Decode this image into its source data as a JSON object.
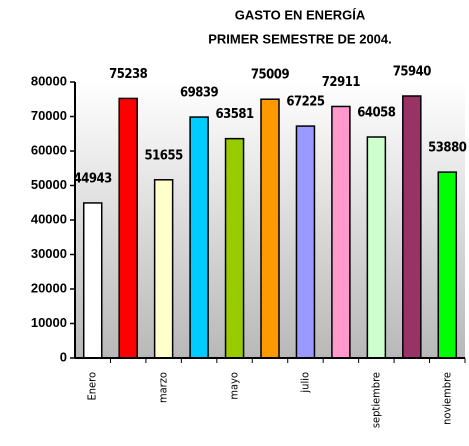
{
  "chart_data": {
    "type": "bar",
    "title": [
      "GASTO EN ENERGÍA",
      "PRIMER SEMESTRE DE 2004."
    ],
    "categories": [
      "Enero",
      null,
      "marzo",
      null,
      "mayo",
      null,
      "julio",
      null,
      "septiembre",
      null,
      "noviembre"
    ],
    "values": [
      44943,
      75238,
      51655,
      69839,
      63581,
      75009,
      67225,
      72911,
      64058,
      75940,
      53880
    ],
    "colors": [
      "#ffffff",
      "#ff0000",
      "#ffffcc",
      "#00ccff",
      "#99cc00",
      "#ff9900",
      "#9999ff",
      "#ff99cc",
      "#ccffcc",
      "#993366",
      "#00ff00"
    ],
    "ylim": [
      0,
      80000
    ],
    "yticks": [
      0,
      10000,
      20000,
      30000,
      40000,
      50000,
      60000,
      70000,
      80000
    ],
    "grid": false
  }
}
